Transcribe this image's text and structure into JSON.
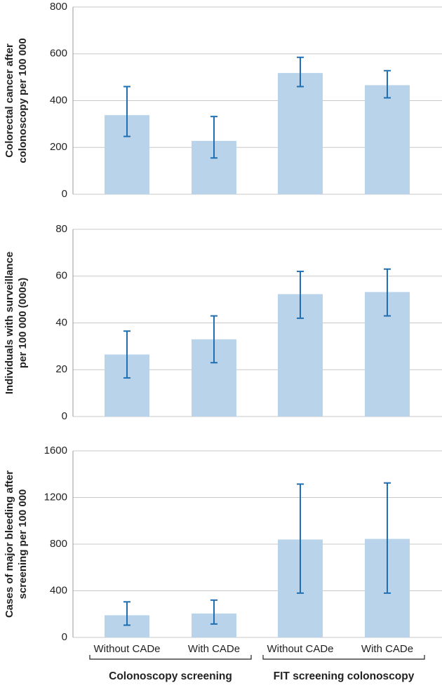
{
  "chart_data": [
    {
      "type": "bar",
      "ylabel": [
        "Colorectal cancer  after",
        "colonoscopy per 100 000"
      ],
      "categories": [
        null,
        null,
        null,
        null
      ],
      "values": [
        338,
        228,
        518,
        466
      ],
      "lower": [
        247,
        155,
        460,
        412
      ],
      "upper": [
        460,
        332,
        585,
        528
      ],
      "color": "#b8d3ea",
      "error_color": "#1f6fb2",
      "ylim": [
        0,
        800
      ],
      "yticks": [
        0,
        200,
        400,
        600,
        800
      ],
      "grid": true
    },
    {
      "type": "bar",
      "ylabel": [
        "Individuals with surveillance",
        "per 100 000 (000s)"
      ],
      "categories": [
        null,
        null,
        null,
        null
      ],
      "values": [
        26.5,
        33,
        52.3,
        53.2
      ],
      "lower": [
        16.5,
        23,
        42,
        43
      ],
      "upper": [
        36.5,
        43,
        62,
        63
      ],
      "color": "#b8d3ea",
      "error_color": "#1f6fb2",
      "ylim": [
        0,
        80
      ],
      "yticks": [
        0,
        20,
        40,
        60,
        80
      ],
      "grid": true
    },
    {
      "type": "bar",
      "ylabel": [
        "Cases of major bleeding after",
        "screening per 100 000"
      ],
      "categories": [
        "Without CADe",
        "With CADe",
        "Without CADe",
        "With CADe"
      ],
      "groups": [
        "Colonoscopy screening",
        "FIT screening colonoscopy"
      ],
      "values": [
        190,
        205,
        840,
        845
      ],
      "lower": [
        105,
        115,
        380,
        380
      ],
      "upper": [
        305,
        320,
        1315,
        1325
      ],
      "color": "#b8d3ea",
      "error_color": "#1f6fb2",
      "ylim": [
        0,
        1600
      ],
      "yticks": [
        0,
        400,
        800,
        1200,
        1600
      ],
      "grid": true
    }
  ]
}
